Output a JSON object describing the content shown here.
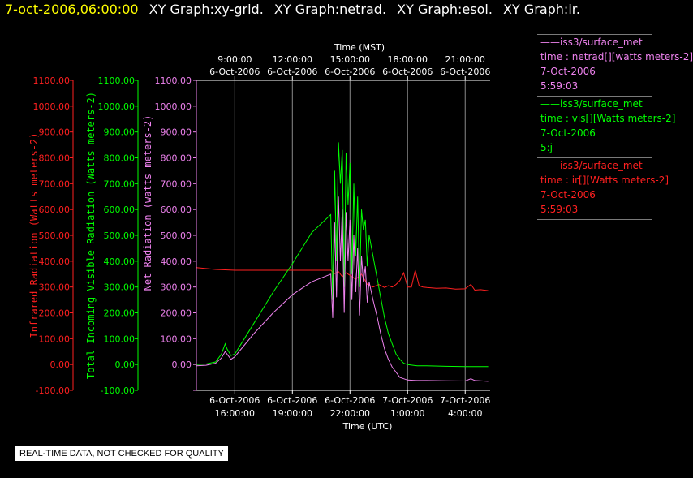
{
  "header": {
    "datetime": "7-oct-2006,06:00:00",
    "titles": [
      "XY Graph:xy-grid.",
      "XY Graph:netrad.",
      "XY Graph:esol.",
      "XY Graph:ir."
    ]
  },
  "colors": {
    "ir": "#ff2020",
    "vis": "#00ff00",
    "net": "#ee82ee",
    "grid": "#8a8a8a",
    "axis": "#ffffff"
  },
  "chart_data": {
    "type": "line",
    "top_axis": {
      "label": "Time (MST)",
      "ticks": [
        {
          "time": "9:00:00",
          "date": "6-Oct-2006"
        },
        {
          "time": "12:00:00",
          "date": "6-Oct-2006"
        },
        {
          "time": "15:00:00",
          "date": "6-Oct-2006"
        },
        {
          "time": "18:00:00",
          "date": "6-Oct-2006"
        },
        {
          "time": "21:00:00",
          "date": "6-Oct-2006"
        }
      ]
    },
    "bottom_axis": {
      "label": "Time (UTC)",
      "ticks": [
        {
          "date": "6-Oct-2006",
          "time": "16:00:00"
        },
        {
          "date": "6-Oct-2006",
          "time": "19:00:00"
        },
        {
          "date": "6-Oct-2006",
          "time": "22:00:00"
        },
        {
          "date": "7-Oct-2006",
          "time": "1:00:00"
        },
        {
          "date": "7-Oct-2006",
          "time": "4:00:00"
        }
      ]
    },
    "x_range_hours": [
      14,
      29.3
    ],
    "y_range": [
      -100,
      1100
    ],
    "y_ticks": [
      "-100.00",
      "0.00",
      "100.00",
      "200.00",
      "300.00",
      "400.00",
      "500.00",
      "600.00",
      "700.00",
      "800.00",
      "900.00",
      "1000.00",
      "1100.00"
    ],
    "y_axes": [
      {
        "label": "Infrared Radiation (Watts meters-2)",
        "color": "ir"
      },
      {
        "label": "Total Incoming Visible Radiation (Watts meters-2)",
        "color": "vis"
      },
      {
        "label": "Net Radiation (watts meters-2)",
        "color": "net"
      }
    ],
    "series": [
      {
        "name": "ir",
        "color": "ir",
        "x": [
          14.0,
          15.0,
          16.0,
          17.0,
          18.0,
          19.0,
          20.0,
          21.0,
          21.2,
          21.4,
          21.6,
          21.8,
          22.0,
          22.3,
          22.6,
          22.9,
          23.2,
          23.5,
          23.8,
          24.0,
          24.2,
          24.4,
          24.6,
          24.8,
          25.0,
          25.2,
          25.4,
          25.6,
          25.8,
          26.0,
          26.5,
          27.0,
          27.5,
          28.0,
          28.3,
          28.5,
          28.8,
          29.2
        ],
        "y": [
          375,
          368,
          365,
          365,
          365,
          365,
          365,
          365,
          352,
          360,
          340,
          355,
          345,
          330,
          350,
          310,
          300,
          310,
          298,
          305,
          300,
          310,
          325,
          355,
          300,
          300,
          365,
          305,
          300,
          298,
          295,
          296,
          292,
          293,
          310,
          288,
          290,
          286
        ]
      },
      {
        "name": "vis",
        "color": "vis",
        "x": [
          14.0,
          14.5,
          15.0,
          15.3,
          15.5,
          15.6,
          15.8,
          16.0,
          17.0,
          18.0,
          19.0,
          20.0,
          21.0,
          21.1,
          21.2,
          21.3,
          21.4,
          21.5,
          21.6,
          21.7,
          21.8,
          21.9,
          22.0,
          22.1,
          22.2,
          22.3,
          22.4,
          22.5,
          22.6,
          22.7,
          22.8,
          22.9,
          23.0,
          23.2,
          23.4,
          23.6,
          23.8,
          24.0,
          24.2,
          24.4,
          24.6,
          24.8,
          25.0,
          25.5,
          26.0,
          27.0,
          28.0,
          29.2
        ],
        "y": [
          0,
          2,
          10,
          40,
          80,
          60,
          35,
          40,
          160,
          280,
          390,
          510,
          580,
          250,
          750,
          400,
          860,
          700,
          830,
          300,
          820,
          620,
          780,
          350,
          700,
          420,
          650,
          300,
          600,
          520,
          560,
          380,
          500,
          420,
          340,
          260,
          180,
          120,
          80,
          40,
          20,
          5,
          0,
          -5,
          -5,
          -7,
          -8,
          -8
        ]
      },
      {
        "name": "net",
        "color": "net",
        "x": [
          14.0,
          14.5,
          15.0,
          15.3,
          15.5,
          15.6,
          15.8,
          16.0,
          17.0,
          18.0,
          19.0,
          20.0,
          21.0,
          21.1,
          21.2,
          21.3,
          21.4,
          21.5,
          21.6,
          21.7,
          21.8,
          21.9,
          22.0,
          22.1,
          22.2,
          22.3,
          22.4,
          22.5,
          22.6,
          22.7,
          22.8,
          22.9,
          23.0,
          23.2,
          23.4,
          23.6,
          23.8,
          24.0,
          24.2,
          24.4,
          24.6,
          24.8,
          25.0,
          25.5,
          26.0,
          27.0,
          28.0,
          28.3,
          28.5,
          29.2
        ],
        "y": [
          -5,
          -3,
          5,
          25,
          50,
          40,
          20,
          30,
          120,
          200,
          270,
          320,
          350,
          180,
          550,
          260,
          650,
          400,
          600,
          200,
          590,
          400,
          560,
          250,
          500,
          280,
          450,
          190,
          420,
          320,
          380,
          240,
          320,
          250,
          190,
          120,
          60,
          20,
          -10,
          -30,
          -50,
          -55,
          -60,
          -62,
          -62,
          -63,
          -64,
          -55,
          -62,
          -65
        ]
      }
    ]
  },
  "legend": [
    {
      "source": "iss3/surface_met",
      "variable": "time : netrad[][watts meters-2]",
      "date": "7-Oct-2006",
      "time": "5:59:03",
      "color": "net"
    },
    {
      "source": "iss3/surface_met",
      "variable": "time : vis[][Watts meters-2]",
      "date": "7-Oct-2006",
      "time": "5:j",
      "color": "vis"
    },
    {
      "source": "iss3/surface_met",
      "variable": "time : ir[][Watts meters-2]",
      "date": "7-Oct-2006",
      "time": "5:59:03",
      "color": "ir"
    }
  ],
  "notice": "REAL-TIME DATA, NOT CHECKED FOR QUALITY"
}
